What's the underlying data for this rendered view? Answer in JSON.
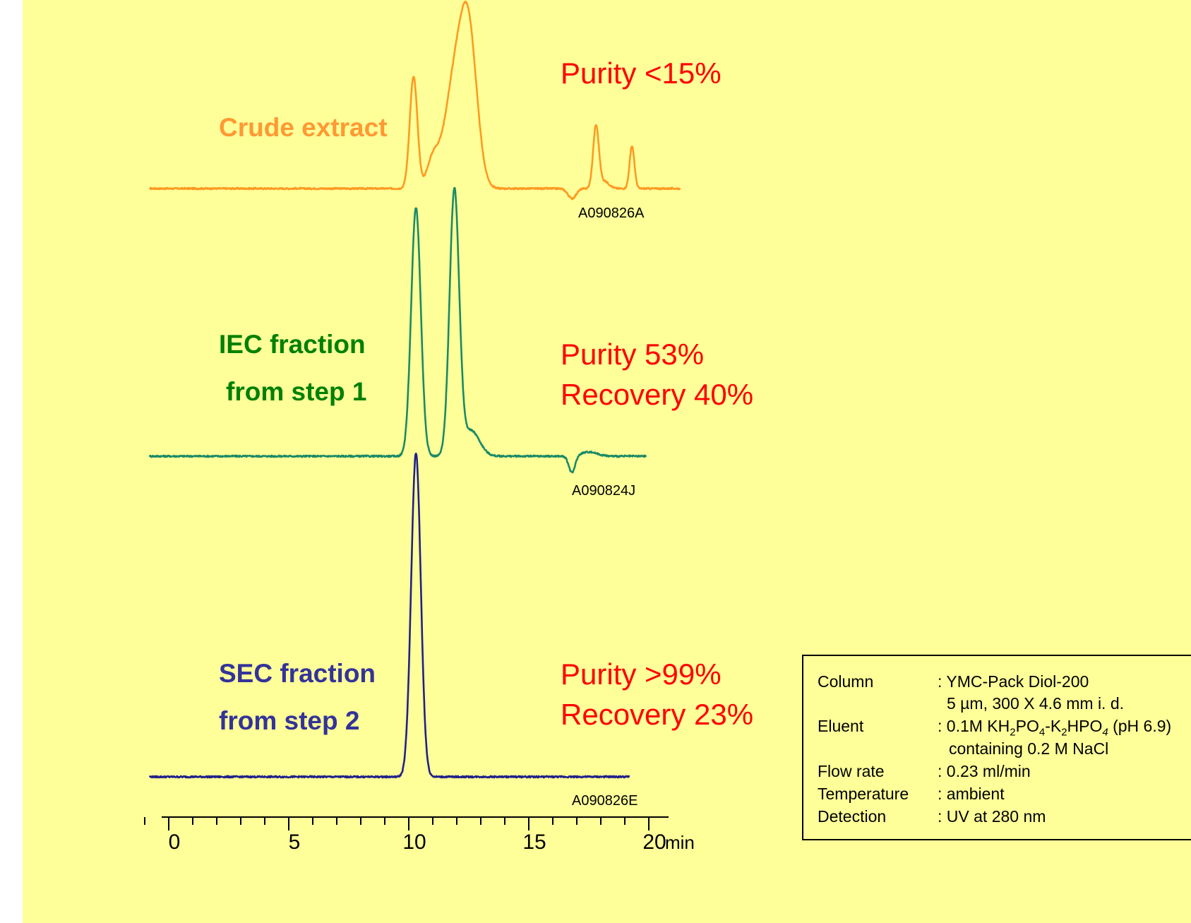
{
  "chart_data": {
    "type": "line",
    "x_unit": "min",
    "xlim": [
      0,
      20
    ],
    "x_ticks": [
      "0",
      "5",
      "10",
      "15",
      "20"
    ],
    "grid": false,
    "series": [
      {
        "key": "crude",
        "name": "Crude extract",
        "sample_id": "A090826A",
        "purity": "Purity <15%",
        "recovery": "",
        "color": "#ff9922",
        "baseline": 0,
        "peaks": [
          {
            "t": 10.2,
            "height": 158,
            "width": 0.16
          },
          {
            "t": 11.0,
            "height": 38,
            "width": 0.25
          },
          {
            "t": 11.9,
            "height": 145,
            "width": 0.42
          },
          {
            "t": 12.5,
            "height": 200,
            "width": 0.35
          },
          {
            "t": 16.8,
            "height": -14,
            "width": 0.17
          },
          {
            "t": 17.8,
            "height": 88,
            "width": 0.12
          },
          {
            "t": 18.15,
            "height": 10,
            "width": 0.2
          },
          {
            "t": 19.3,
            "height": 60,
            "width": 0.1
          }
        ]
      },
      {
        "key": "iec",
        "name": "IEC fraction from step 1",
        "sample_id": "A090824J",
        "purity": "Purity 53%",
        "recovery": "Recovery 40%",
        "color": "#1a8a66",
        "baseline": 0,
        "peaks": [
          {
            "t": 10.3,
            "height": 352,
            "width": 0.2
          },
          {
            "t": 11.9,
            "height": 375,
            "width": 0.2
          },
          {
            "t": 12.6,
            "height": 36,
            "width": 0.35
          },
          {
            "t": 16.8,
            "height": -24,
            "width": 0.13
          },
          {
            "t": 17.5,
            "height": 6,
            "width": 0.35
          }
        ]
      },
      {
        "key": "sec",
        "name": "SEC fraction from step 2",
        "sample_id": "A090826E",
        "purity": "Purity >99%",
        "recovery": "Recovery 23%",
        "color": "#20208a",
        "baseline": 0,
        "peaks": [
          {
            "t": 10.3,
            "height": 458,
            "width": 0.2
          }
        ]
      }
    ]
  },
  "labels": {
    "crude": "Crude extract",
    "iec_line1": "IEC fraction",
    "iec_line2": "from step 1",
    "sec_line1": "SEC fraction",
    "sec_line2": "from step 2",
    "x_unit": "min"
  },
  "conditions": {
    "column_key": "Column",
    "column_val": ": YMC-Pack Diol-200",
    "column_val2": "5 µm, 300 X 4.6 mm i. d.",
    "eluent_key": "Eluent",
    "eluent_val_prefix": ": 0.1M KH",
    "eluent_sub1": "2",
    "eluent_mid1": "PO",
    "eluent_sub2": "4",
    "eluent_mid2": "-K",
    "eluent_sub3": "2",
    "eluent_mid3": "HPO",
    "eluent_sub4": "4",
    "eluent_suffix": " (pH 6.9)",
    "eluent_val2": "containing 0.2 M NaCl",
    "flow_key": "Flow rate",
    "flow_val": ": 0.23 ml/min",
    "temp_key": "Temperature",
    "temp_val": ": ambient",
    "det_key": "Detection",
    "det_val": ": UV at 280 nm"
  }
}
